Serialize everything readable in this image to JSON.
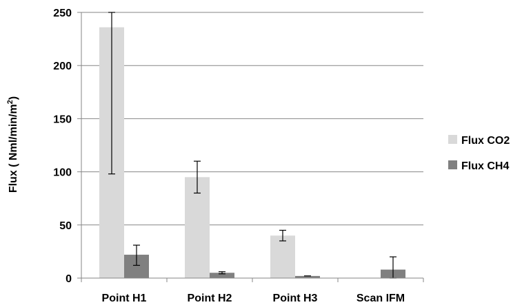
{
  "chart_data": {
    "type": "bar",
    "categories": [
      "Point H1",
      "Point H2",
      "Point H3",
      "Scan IFM"
    ],
    "series": [
      {
        "name": "Flux CO2",
        "values": [
          236,
          95,
          40,
          null
        ],
        "error": [
          [
            98,
            250
          ],
          [
            80,
            110
          ],
          [
            35,
            45
          ],
          null
        ],
        "color": "#d9d9d9"
      },
      {
        "name": "Flux CH4",
        "values": [
          22,
          5,
          2,
          8
        ],
        "error": [
          [
            12,
            31
          ],
          [
            4,
            6
          ],
          [
            2,
            2
          ],
          [
            0,
            20
          ]
        ],
        "color": "#808080"
      }
    ],
    "ylabel_parts": [
      "Flux ( Nml/min/m",
      "2",
      ")"
    ],
    "ylim": [
      0,
      250
    ],
    "yticks": [
      0,
      50,
      100,
      150,
      200,
      250
    ],
    "grid": true,
    "legend_position": "right"
  }
}
